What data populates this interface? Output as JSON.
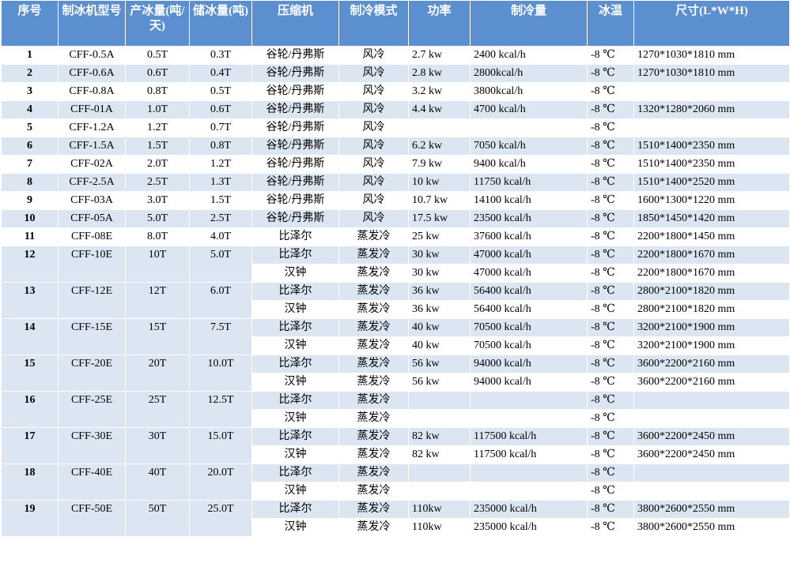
{
  "header": [
    "序号",
    "制冰机型号",
    "产冰量(吨/天)",
    "储冰量(吨)",
    "压缩机",
    "制冷模式",
    "功率",
    "制冷量",
    "冰温",
    "尺寸(L*W*H)"
  ],
  "rows": [
    {
      "no": "1",
      "model": "CFF-0.5A",
      "output": "0.5T",
      "storage": "0.3T",
      "units": [
        {
          "compressor": "谷轮/丹弗斯",
          "mode": "风冷",
          "power": "2.7 kw",
          "capacity": "2400 kcal/h",
          "temp": "-8 ℃",
          "size": "1270*1030*1810 mm"
        }
      ]
    },
    {
      "no": "2",
      "model": "CFF-0.6A",
      "output": "0.6T",
      "storage": "0.4T",
      "units": [
        {
          "compressor": "谷轮/丹弗斯",
          "mode": "风冷",
          "power": "2.8 kw",
          "capacity": "2800kcal/h",
          "temp": "-8 ℃",
          "size": "1270*1030*1810 mm"
        }
      ]
    },
    {
      "no": "3",
      "model": "CFF-0.8A",
      "output": "0.8T",
      "storage": "0.5T",
      "units": [
        {
          "compressor": "谷轮/丹弗斯",
          "mode": "风冷",
          "power": "3.2 kw",
          "capacity": "3800kcal/h",
          "temp": "-8 ℃",
          "size": null
        }
      ]
    },
    {
      "no": "4",
      "model": "CFF-01A",
      "output": "1.0T",
      "storage": "0.6T",
      "units": [
        {
          "compressor": "谷轮/丹弗斯",
          "mode": "风冷",
          "power": "4.4 kw",
          "capacity": "4700 kcal/h",
          "temp": "-8 ℃",
          "size": "1320*1280*2060 mm"
        }
      ]
    },
    {
      "no": "5",
      "model": "CFF-1.2A",
      "output": "1.2T",
      "storage": "0.7T",
      "units": [
        {
          "compressor": "谷轮/丹弗斯",
          "mode": "风冷",
          "power": null,
          "capacity": null,
          "temp": "-8 ℃",
          "size": null
        }
      ]
    },
    {
      "no": "6",
      "model": "CFF-1.5A",
      "output": "1.5T",
      "storage": "0.8T",
      "units": [
        {
          "compressor": "谷轮/丹弗斯",
          "mode": "风冷",
          "power": "6.2 kw",
          "capacity": "7050 kcal/h",
          "temp": "-8 ℃",
          "size": "1510*1400*2350 mm"
        }
      ]
    },
    {
      "no": "7",
      "model": "CFF-02A",
      "output": "2.0T",
      "storage": "1.2T",
      "units": [
        {
          "compressor": "谷轮/丹弗斯",
          "mode": "风冷",
          "power": "7.9 kw",
          "capacity": "9400 kcal/h",
          "temp": "-8 ℃",
          "size": "1510*1400*2350 mm"
        }
      ]
    },
    {
      "no": "8",
      "model": "CFF-2.5A",
      "output": "2.5T",
      "storage": "1.3T",
      "units": [
        {
          "compressor": "谷轮/丹弗斯",
          "mode": "风冷",
          "power": "10 kw",
          "capacity": "11750 kcal/h",
          "temp": "-8 ℃",
          "size": "1510*1400*2520 mm"
        }
      ]
    },
    {
      "no": "9",
      "model": "CFF-03A",
      "output": "3.0T",
      "storage": "1.5T",
      "units": [
        {
          "compressor": "谷轮/丹弗斯",
          "mode": "风冷",
          "power": "10.7 kw",
          "capacity": "14100 kcal/h",
          "temp": "-8 ℃",
          "size": "1600*1300*1220 mm"
        }
      ]
    },
    {
      "no": "10",
      "model": "CFF-05A",
      "output": "5.0T",
      "storage": "2.5T",
      "units": [
        {
          "compressor": "谷轮/丹弗斯",
          "mode": "风冷",
          "power": "17.5 kw",
          "capacity": "23500 kcal/h",
          "temp": "-8 ℃",
          "size": "1850*1450*1420 mm"
        }
      ]
    },
    {
      "no": "11",
      "model": "CFF-08E",
      "output": "8.0T",
      "storage": "4.0T",
      "units": [
        {
          "compressor": "比泽尔",
          "mode": "蒸发冷",
          "power": "25 kw",
          "capacity": "37600 kcal/h",
          "temp": "-8 ℃",
          "size": "2200*1800*1450 mm"
        }
      ]
    },
    {
      "no": "12",
      "model": "CFF-10E",
      "output": "10T",
      "storage": "5.0T",
      "units": [
        {
          "compressor": "比泽尔",
          "mode": "蒸发冷",
          "power": "30 kw",
          "capacity": "47000 kcal/h",
          "temp": "-8 ℃",
          "size": "2200*1800*1670 mm"
        },
        {
          "compressor": "汉钟",
          "mode": "蒸发冷",
          "power": "30 kw",
          "capacity": "47000 kcal/h",
          "temp": "-8 ℃",
          "size": "2200*1800*1670 mm"
        }
      ]
    },
    {
      "no": "13",
      "model": "CFF-12E",
      "output": "12T",
      "storage": "6.0T",
      "units": [
        {
          "compressor": "比泽尔",
          "mode": "蒸发冷",
          "power": "36 kw",
          "capacity": "56400 kcal/h",
          "temp": "-8 ℃",
          "size": "2800*2100*1820 mm"
        },
        {
          "compressor": "汉钟",
          "mode": "蒸发冷",
          "power": "36 kw",
          "capacity": "56400 kcal/h",
          "temp": "-8 ℃",
          "size": "2800*2100*1820 mm"
        }
      ]
    },
    {
      "no": "14",
      "model": "CFF-15E",
      "output": "15T",
      "storage": "7.5T",
      "units": [
        {
          "compressor": "比泽尔",
          "mode": "蒸发冷",
          "power": "40 kw",
          "capacity": "70500 kcal/h",
          "temp": "-8 ℃",
          "size": "3200*2100*1900 mm"
        },
        {
          "compressor": "汉钟",
          "mode": "蒸发冷",
          "power": "40 kw",
          "capacity": "70500 kcal/h",
          "temp": "-8 ℃",
          "size": "3200*2100*1900 mm"
        }
      ]
    },
    {
      "no": "15",
      "model": "CFF-20E",
      "output": "20T",
      "storage": "10.0T",
      "units": [
        {
          "compressor": "比泽尔",
          "mode": "蒸发冷",
          "power": "56 kw",
          "capacity": "94000 kcal/h",
          "temp": "-8 ℃",
          "size": "3600*2200*2160 mm"
        },
        {
          "compressor": "汉钟",
          "mode": "蒸发冷",
          "power": "56 kw",
          "capacity": "94000 kcal/h",
          "temp": "-8 ℃",
          "size": "3600*2200*2160 mm"
        }
      ]
    },
    {
      "no": "16",
      "model": "CFF-25E",
      "output": "25T",
      "storage": "12.5T",
      "units": [
        {
          "compressor": "比泽尔",
          "mode": "蒸发冷",
          "power": null,
          "capacity": null,
          "temp": "-8 ℃",
          "size": null
        },
        {
          "compressor": "汉钟",
          "mode": "蒸发冷",
          "power": null,
          "capacity": null,
          "temp": "-8 ℃",
          "size": null
        }
      ]
    },
    {
      "no": "17",
      "model": "CFF-30E",
      "output": "30T",
      "storage": "15.0T",
      "units": [
        {
          "compressor": "比泽尔",
          "mode": "蒸发冷",
          "power": "82 kw",
          "capacity": "117500 kcal/h",
          "temp": "-8 ℃",
          "size": "3600*2200*2450 mm"
        },
        {
          "compressor": "汉钟",
          "mode": "蒸发冷",
          "power": "82 kw",
          "capacity": "117500 kcal/h",
          "temp": "-8 ℃",
          "size": "3600*2200*2450 mm"
        }
      ]
    },
    {
      "no": "18",
      "model": "CFF-40E",
      "output": "40T",
      "storage": "20.0T",
      "units": [
        {
          "compressor": "比泽尔",
          "mode": "蒸发冷",
          "power": null,
          "capacity": null,
          "temp": "-8 ℃",
          "size": null
        },
        {
          "compressor": "汉钟",
          "mode": "蒸发冷",
          "power": null,
          "capacity": null,
          "temp": "-8 ℃",
          "size": null
        }
      ]
    },
    {
      "no": "19",
      "model": "CFF-50E",
      "output": "50T",
      "storage": "25.0T",
      "units": [
        {
          "compressor": "比泽尔",
          "mode": "蒸发冷",
          "power": "110kw",
          "capacity": "235000 kcal/h",
          "temp": "-8 ℃",
          "size": "3800*2600*2550 mm"
        },
        {
          "compressor": "汉钟",
          "mode": "蒸发冷",
          "power": "110kw",
          "capacity": "235000 kcal/h",
          "temp": "-8 ℃",
          "size": "3800*2600*2550 mm"
        }
      ]
    }
  ]
}
